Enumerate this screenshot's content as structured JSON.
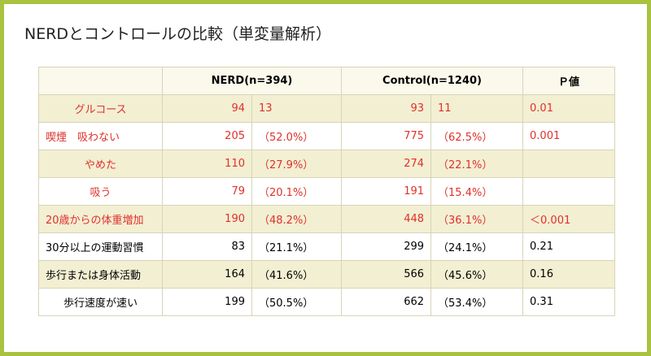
{
  "title": "NERDとコントロールの比較（単変量解析）",
  "table": {
    "header": [
      "NERD(n=394)",
      "Control(n=1240)",
      "Ｐ値"
    ],
    "rows": [
      [
        "グルコース",
        "94",
        "13",
        "93",
        "11",
        "0.01"
      ],
      [
        "喫煙　吸わない",
        "205",
        "（52.0%）",
        "775",
        "（62.5%）",
        "0.001"
      ],
      [
        "やめた",
        "110",
        "（27.9%）",
        "274",
        "（22.1%）",
        ""
      ],
      [
        "吸う",
        "79",
        "（20.1%）",
        "191",
        "（15.4%）",
        ""
      ],
      [
        "20歳からの体重増加",
        "190",
        "（48.2%）",
        "448",
        "（36.1%）",
        "＜0.001"
      ],
      [
        "30分以上の運動習慣",
        "83",
        "（21.1%）",
        "299",
        "（24.1%）",
        "0.21"
      ],
      [
        "歩行または身体活動",
        "164",
        "（41.6%）",
        "566",
        "（45.6%）",
        "0.16"
      ],
      [
        "歩行速度が速い",
        "199",
        "（50.5%）",
        "662",
        "（53.4%）",
        "0.31"
      ]
    ]
  }
}
